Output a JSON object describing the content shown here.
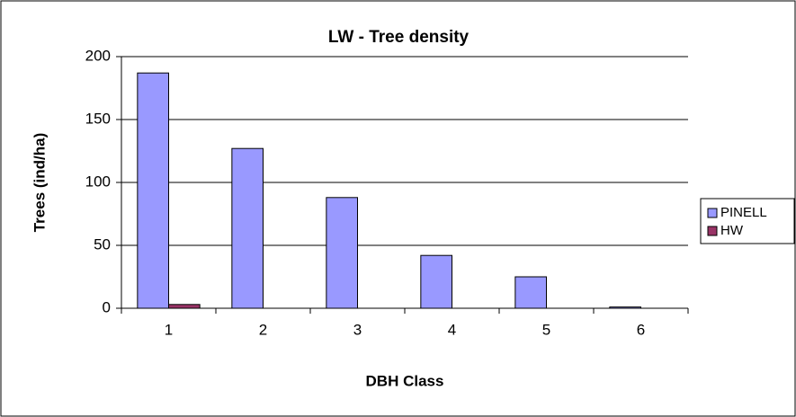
{
  "chart_data": {
    "type": "bar",
    "title": "LW - Tree density",
    "x_label": "DBH Class",
    "y_label": "Trees (ind/ha)",
    "categories": [
      "1",
      "2",
      "3",
      "4",
      "5",
      "6"
    ],
    "series": [
      {
        "name": "PINELL",
        "color": "#9999ff",
        "values": [
          187,
          127,
          88,
          42,
          25,
          1
        ]
      },
      {
        "name": "HW",
        "color": "#993366",
        "values": [
          3,
          0,
          0,
          0,
          0,
          0
        ]
      }
    ],
    "ylim": [
      0,
      200
    ],
    "yticks": [
      0,
      50,
      100,
      150,
      200
    ],
    "grid": true,
    "legend": "right"
  }
}
